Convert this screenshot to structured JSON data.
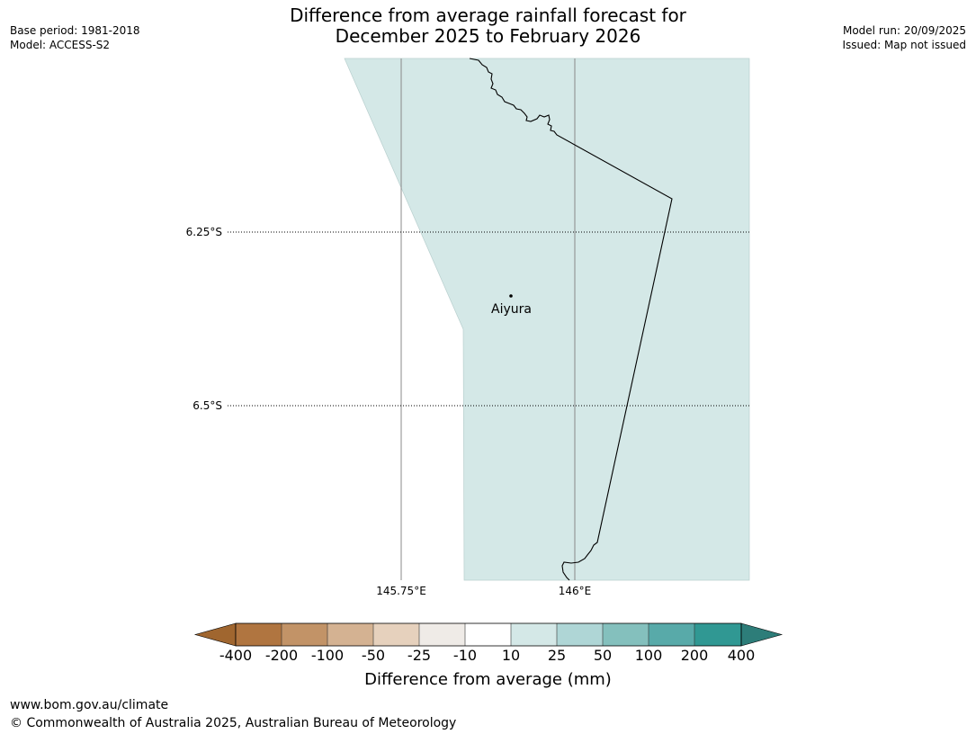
{
  "header": {
    "title_line1": "Difference from average rainfall forecast for",
    "title_line2": "December 2025 to February 2026",
    "base_period": "Base period: 1981-2018",
    "model": "Model: ACCESS-S2",
    "model_run": "Model run: 20/09/2025",
    "issued": "Issued: Map not issued"
  },
  "map": {
    "lat_labels": [
      "6.25°S",
      "6.5°S"
    ],
    "lon_labels": [
      "145.75°E",
      "146°E"
    ],
    "place": {
      "name": "Aiyura"
    },
    "fill_color": "#d4e8e7",
    "fill_category": "10 to 25"
  },
  "colorbar": {
    "ticks": [
      "-400",
      "-200",
      "-100",
      "-50",
      "-25",
      "-10",
      "10",
      "25",
      "50",
      "100",
      "200",
      "400"
    ],
    "colors": [
      "#a0662f",
      "#b07540",
      "#c29367",
      "#d4b292",
      "#e6d1bd",
      "#efebe7",
      "#ffffff",
      "#d4e8e7",
      "#afd6d6",
      "#84c0bd",
      "#58aaa9",
      "#309893",
      "#2d7d79"
    ],
    "label": "Difference from average (mm)"
  },
  "footer": {
    "url": "www.bom.gov.au/climate",
    "copyright": "© Commonwealth of Australia 2025, Australian Bureau of Meteorology"
  }
}
